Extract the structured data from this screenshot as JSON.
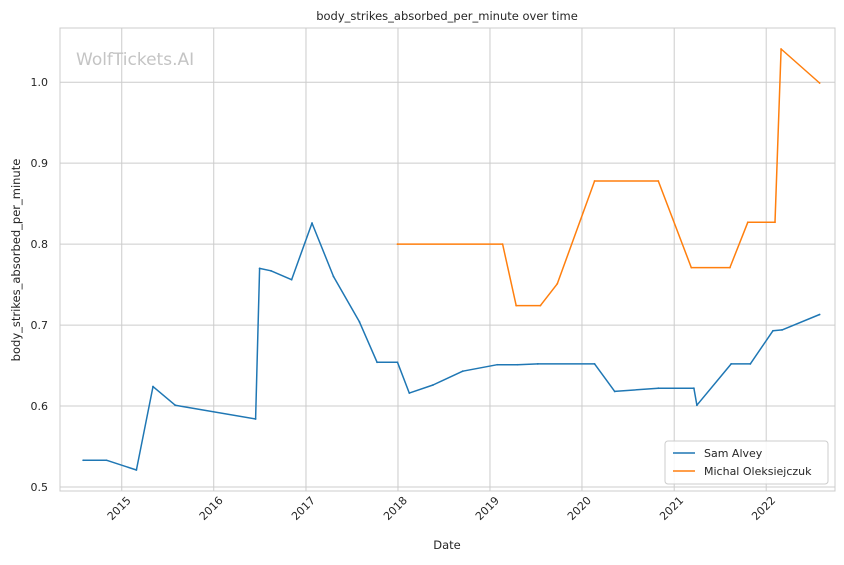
{
  "chart_data": {
    "type": "line",
    "title": "body_strikes_absorbed_per_minute over time",
    "xlabel": "Date",
    "ylabel": "body_strikes_absorbed_per_minute",
    "watermark": "WolfTickets.AI",
    "xlim": [
      "2014-05-01",
      "2022-10-01"
    ],
    "ylim": [
      0.495,
      1.067
    ],
    "x_ticks": [
      "2015",
      "2016",
      "2017",
      "2018",
      "2019",
      "2020",
      "2021",
      "2022"
    ],
    "y_ticks": [
      "0.5",
      "0.6",
      "0.7",
      "0.8",
      "0.9",
      "1.0"
    ],
    "grid": true,
    "legend_position": "lower-right",
    "colors": {
      "axes_edge": "#cccccc",
      "grid": "#cccccc"
    },
    "series": [
      {
        "name": "Sam Alvey",
        "color": "#1f77b4",
        "points": [
          [
            "2014-08-01",
            0.533
          ],
          [
            "2014-11-01",
            0.533
          ],
          [
            "2015-02-28",
            0.521
          ],
          [
            "2015-05-05",
            0.624
          ],
          [
            "2015-08-01",
            0.601
          ],
          [
            "2016-06-15",
            0.584
          ],
          [
            "2016-07-01",
            0.77
          ],
          [
            "2016-08-15",
            0.767
          ],
          [
            "2016-11-05",
            0.756
          ],
          [
            "2017-01-25",
            0.826
          ],
          [
            "2017-04-20",
            0.76
          ],
          [
            "2017-08-01",
            0.704
          ],
          [
            "2017-10-10",
            0.654
          ],
          [
            "2017-12-30",
            0.654
          ],
          [
            "2018-02-15",
            0.616
          ],
          [
            "2018-05-20",
            0.626
          ],
          [
            "2018-09-15",
            0.643
          ],
          [
            "2019-01-30",
            0.651
          ],
          [
            "2019-04-20",
            0.651
          ],
          [
            "2019-07-10",
            0.652
          ],
          [
            "2020-02-20",
            0.652
          ],
          [
            "2020-05-10",
            0.618
          ],
          [
            "2020-10-30",
            0.622
          ],
          [
            "2021-03-20",
            0.622
          ],
          [
            "2021-04-01",
            0.601
          ],
          [
            "2021-08-15",
            0.652
          ],
          [
            "2021-10-30",
            0.652
          ],
          [
            "2022-01-28",
            0.693
          ],
          [
            "2022-03-05",
            0.694
          ],
          [
            "2022-08-01",
            0.713
          ]
        ]
      },
      {
        "name": "Michal Oleksiejczuk",
        "color": "#ff7f0e",
        "points": [
          [
            "2017-12-30",
            0.8
          ],
          [
            "2019-02-20",
            0.8
          ],
          [
            "2019-04-15",
            0.724
          ],
          [
            "2019-07-20",
            0.724
          ],
          [
            "2019-09-25",
            0.751
          ],
          [
            "2020-02-20",
            0.878
          ],
          [
            "2020-10-30",
            0.878
          ],
          [
            "2021-03-10",
            0.771
          ],
          [
            "2021-08-10",
            0.771
          ],
          [
            "2021-10-20",
            0.827
          ],
          [
            "2022-02-05",
            0.827
          ],
          [
            "2022-03-01",
            1.041
          ],
          [
            "2022-08-01",
            0.999
          ]
        ]
      }
    ]
  }
}
